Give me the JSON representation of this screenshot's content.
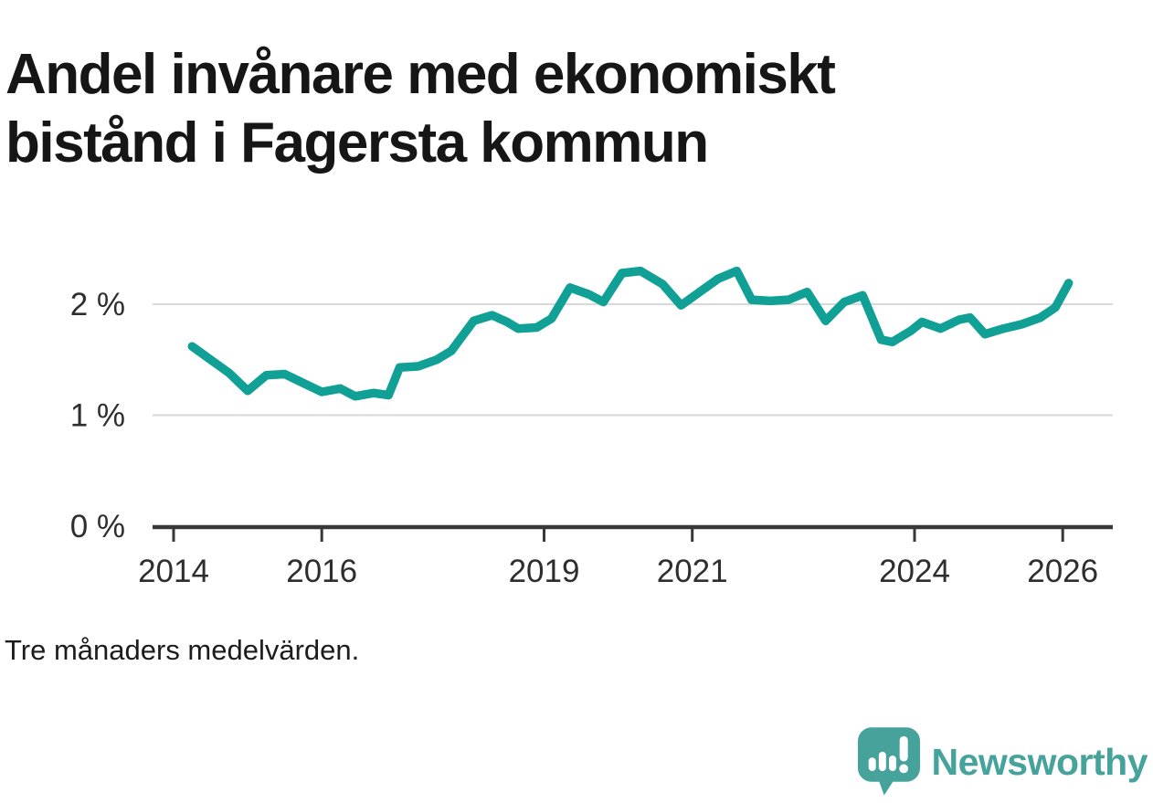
{
  "header": {
    "title": "Andel invånare med ekonomiskt bistånd i Fagersta kommun"
  },
  "footer": {
    "note": "Tre månaders medelvärden.",
    "brand": {
      "wordmark": "Newsworthy",
      "icon": "newsworthy-logo-icon"
    }
  },
  "colors": {
    "line": "#10a096",
    "grid": "#d9d9d9",
    "axis": "#383838",
    "tick_text": "#2e2e2e",
    "brand": "#46a39b",
    "title_text": "#161616"
  },
  "chart_data": {
    "type": "line",
    "title": "Andel invånare med ekonomiskt bistånd i Fagersta kommun",
    "note": "Tre månaders medelvärden.",
    "xlabel": "",
    "ylabel": "",
    "unit": "%",
    "xlim": [
      2013.72,
      2026.7
    ],
    "ylim": [
      0,
      2.5
    ],
    "grid": "horizontal",
    "legend": "none",
    "y_ticks": [
      {
        "value": 0,
        "label": "0 %"
      },
      {
        "value": 1,
        "label": "1 %"
      },
      {
        "value": 2,
        "label": "2 %"
      }
    ],
    "x_ticks": [
      {
        "value": 2014,
        "label": "2014"
      },
      {
        "value": 2016,
        "label": "2016"
      },
      {
        "value": 2019,
        "label": "2019"
      },
      {
        "value": 2021,
        "label": "2021"
      },
      {
        "value": 2024,
        "label": "2024"
      },
      {
        "value": 2026,
        "label": "2026"
      }
    ],
    "series": [
      {
        "name": "Andel invånare med ekonomiskt bistånd (%)",
        "color": "#10a096",
        "points": [
          [
            2014.25,
            1.62
          ],
          [
            2014.5,
            1.5
          ],
          [
            2014.75,
            1.38
          ],
          [
            2015.0,
            1.22
          ],
          [
            2015.25,
            1.36
          ],
          [
            2015.5,
            1.37
          ],
          [
            2015.75,
            1.29
          ],
          [
            2016.0,
            1.21
          ],
          [
            2016.25,
            1.24
          ],
          [
            2016.45,
            1.17
          ],
          [
            2016.7,
            1.2
          ],
          [
            2016.9,
            1.18
          ],
          [
            2017.05,
            1.43
          ],
          [
            2017.3,
            1.44
          ],
          [
            2017.55,
            1.5
          ],
          [
            2017.75,
            1.58
          ],
          [
            2018.05,
            1.85
          ],
          [
            2018.3,
            1.9
          ],
          [
            2018.5,
            1.84
          ],
          [
            2018.65,
            1.78
          ],
          [
            2018.9,
            1.79
          ],
          [
            2019.1,
            1.87
          ],
          [
            2019.35,
            2.15
          ],
          [
            2019.6,
            2.09
          ],
          [
            2019.8,
            2.02
          ],
          [
            2020.05,
            2.28
          ],
          [
            2020.3,
            2.3
          ],
          [
            2020.6,
            2.18
          ],
          [
            2020.85,
            1.99
          ],
          [
            2021.1,
            2.11
          ],
          [
            2021.35,
            2.23
          ],
          [
            2021.6,
            2.3
          ],
          [
            2021.8,
            2.04
          ],
          [
            2022.05,
            2.03
          ],
          [
            2022.3,
            2.04
          ],
          [
            2022.55,
            2.11
          ],
          [
            2022.8,
            1.85
          ],
          [
            2023.05,
            2.02
          ],
          [
            2023.3,
            2.08
          ],
          [
            2023.55,
            1.68
          ],
          [
            2023.7,
            1.66
          ],
          [
            2023.95,
            1.76
          ],
          [
            2024.1,
            1.84
          ],
          [
            2024.35,
            1.78
          ],
          [
            2024.6,
            1.86
          ],
          [
            2024.75,
            1.88
          ],
          [
            2024.95,
            1.73
          ],
          [
            2025.2,
            1.78
          ],
          [
            2025.45,
            1.82
          ],
          [
            2025.7,
            1.88
          ],
          [
            2025.9,
            1.97
          ],
          [
            2026.08,
            2.19
          ]
        ]
      }
    ]
  }
}
